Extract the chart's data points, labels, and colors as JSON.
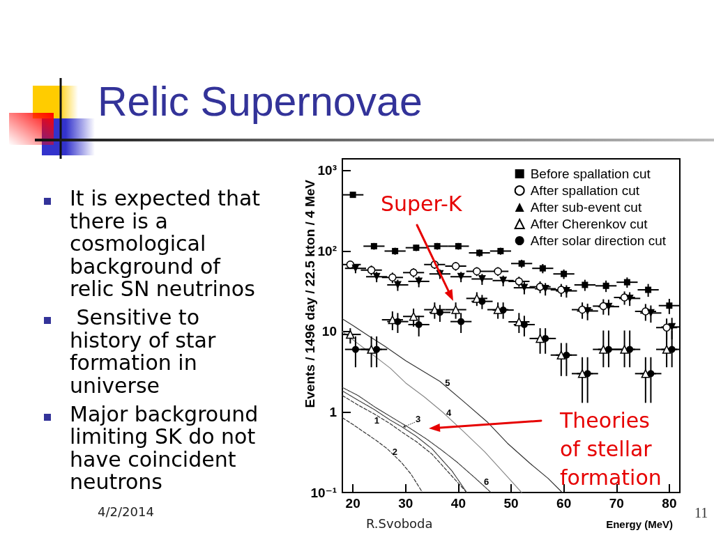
{
  "chart_data": {
    "type": "scatter",
    "title": "Relic Supernovae",
    "xlabel": "Energy (MeV)",
    "ylabel": "Events / 1496 day / 22.5 kton / 4 MeV",
    "xlim": [
      18,
      82
    ],
    "xticks": [
      20,
      30,
      40,
      50,
      60,
      70,
      80
    ],
    "ylim": [
      0.1,
      1400
    ],
    "yticks": [
      {
        "value": 0.1,
        "label": "10⁻¹"
      },
      1,
      10,
      {
        "value": 100,
        "label": "10²"
      },
      {
        "value": 1000,
        "label": "10³"
      }
    ],
    "log": "y",
    "legend": "top right",
    "series": [
      {
        "name": "Before spallation cut",
        "color": "#000000",
        "marker": "square",
        "x": [
          20,
          24,
          28,
          32,
          36,
          40,
          44,
          48,
          52,
          56,
          60,
          64,
          68,
          72,
          76,
          80
        ],
        "values": [
          500,
          115,
          100,
          110,
          115,
          115,
          95,
          100,
          70,
          61,
          52,
          38,
          37,
          41,
          33,
          21
        ],
        "errors": [
          22,
          11,
          10,
          10,
          11,
          11,
          10,
          10,
          8,
          8,
          7,
          6,
          6,
          6,
          6,
          4.5
        ],
        "xerrors": [
          2,
          2,
          2,
          2,
          2,
          2,
          2,
          2,
          2,
          2,
          2,
          2,
          2,
          2,
          2,
          2
        ]
      },
      {
        "name": "After spallation cut",
        "color": "#000000",
        "marker": "circle-open",
        "x": [
          19.5,
          23.5,
          27.5,
          31.5,
          35.5,
          39.5,
          43.5,
          47.5,
          51.5,
          55.5,
          59.5,
          63.5,
          67.5,
          71.5,
          75.5,
          79.5
        ],
        "values": [
          68,
          58,
          47,
          54,
          68,
          65,
          56,
          56,
          42,
          36,
          33,
          18.7,
          20.7,
          26.5,
          17.8,
          11.2
        ],
        "errors": [
          8,
          8,
          7,
          7,
          8,
          8,
          7,
          7,
          6,
          6,
          6,
          4.3,
          4.5,
          5,
          4.2,
          3.3
        ],
        "xerrors": [
          [
            18,
            21.5
          ],
          2,
          2,
          2,
          2,
          2,
          2,
          2,
          2,
          2,
          2,
          2,
          2,
          2,
          2,
          2
        ]
      },
      {
        "name": "After sub-event cut",
        "color": "#000000",
        "marker": "triangle-down",
        "x": [
          20.5,
          24.5,
          28.5,
          32.5,
          36.5,
          40.5,
          44.5,
          48.5,
          52.5,
          56.5,
          60.5,
          64.5,
          68.5,
          72.5,
          76.5,
          80.5
        ],
        "values": [
          61,
          48,
          38,
          42,
          52,
          48,
          45,
          43,
          35,
          34,
          32,
          18,
          20.4,
          25.8,
          17,
          11.4
        ],
        "errors": [
          8,
          7,
          6,
          6.5,
          7,
          7,
          7,
          6.5,
          6,
          6,
          5.6,
          4.2,
          4.5,
          5,
          4.1,
          3.4
        ],
        "xerrors": [
          2,
          2,
          2,
          2,
          2,
          2,
          2,
          2,
          2,
          2,
          2,
          2,
          2,
          2,
          2,
          [
            78.5,
            82
          ]
        ]
      },
      {
        "name": "After Cherenkov cut",
        "color": "#000000",
        "marker": "triangle-open",
        "x": [
          19.5,
          23.5,
          27.5,
          31.5,
          35.5,
          39.5,
          43.5,
          47.5,
          51.5,
          55.5,
          59.5,
          63.5,
          67.5,
          71.5,
          75.5,
          79.5
        ],
        "values": [
          9.2,
          6,
          14,
          15.4,
          18.7,
          18.7,
          25.8,
          18.7,
          13.2,
          8.2,
          5.1,
          3,
          6,
          6,
          3,
          6
        ],
        "errors": [
          [
            7.1,
            11
          ],
          [
            3.6,
            8.7
          ],
          [
            10.4,
            17.8
          ],
          [
            11.5,
            19.3
          ],
          [
            14.4,
            23
          ],
          [
            14.4,
            23
          ],
          [
            20.8,
            30.8
          ],
          [
            14.4,
            23
          ],
          [
            9.6,
            17
          ],
          [
            5.3,
            11
          ],
          [
            2.8,
            7.2
          ],
          [
            1.3,
            4.8
          ],
          [
            3.6,
            10.3
          ],
          [
            3.6,
            10.3
          ],
          [
            1.3,
            4.8
          ],
          [
            3.6,
            10.3
          ]
        ],
        "xerrors": [
          [
            18,
            21.5
          ],
          2,
          2,
          2,
          2,
          2,
          2,
          2,
          2,
          2,
          2,
          2,
          2,
          2,
          2,
          2
        ]
      },
      {
        "name": "After solar direction cut",
        "color": "#000000",
        "marker": "circle",
        "x": [
          20.5,
          24.5,
          28.5,
          32.5,
          36.5,
          40.5,
          44.5,
          48.5,
          52.5,
          56.5,
          60.5,
          64.5,
          68.5,
          72.5,
          76.5,
          80.5
        ],
        "values": [
          6,
          6,
          13.3,
          12.2,
          17.3,
          13.3,
          23.7,
          18.5,
          12.2,
          8.2,
          5.1,
          3,
          6,
          6,
          3,
          6
        ],
        "errors": [
          [
            3.6,
            8.7
          ],
          [
            3.6,
            8.7
          ],
          [
            9.6,
            17
          ],
          [
            8.7,
            15.7
          ],
          [
            13.2,
            21.4
          ],
          [
            9.6,
            17
          ],
          [
            19,
            28.5
          ],
          [
            14.4,
            23
          ],
          [
            8.7,
            15.7
          ],
          [
            5.3,
            11
          ],
          [
            2.8,
            7.2
          ],
          [
            1.3,
            4.8
          ],
          [
            3.6,
            10.3
          ],
          [
            3.6,
            10.3
          ],
          [
            1.3,
            4.8
          ],
          [
            3.6,
            10.3
          ]
        ],
        "xerrors": [
          2,
          2,
          2,
          2,
          2,
          2,
          2,
          2,
          2,
          2,
          2,
          2,
          2,
          2,
          2,
          [
            78.5,
            82
          ]
        ]
      },
      {
        "type": "line",
        "name": "1",
        "color": "#333333",
        "marker": "none",
        "line_style": "dashed",
        "x": [
          18,
          21,
          24,
          27,
          29.2,
          32,
          35,
          38.3,
          41.6
        ],
        "values": [
          1.6,
          1.22,
          0.95,
          0.72,
          0.57,
          0.43,
          0.3,
          0.173,
          0.1
        ]
      },
      {
        "type": "line",
        "name": "2",
        "color": "#333333",
        "marker": "none",
        "line_style": "dashed",
        "x": [
          18,
          20,
          22,
          24.5,
          26.5,
          29.1,
          31,
          33.2
        ],
        "values": [
          0.85,
          0.7,
          0.57,
          0.44,
          0.35,
          0.24,
          0.17,
          0.1
        ]
      },
      {
        "type": "line",
        "name": "3",
        "color": "#333333",
        "marker": "none",
        "line_style": "dotted",
        "x": [
          18,
          21,
          24,
          27,
          29.2,
          32,
          35,
          38.8,
          41.6
        ],
        "values": [
          1.83,
          1.4,
          1.08,
          0.8,
          0.66,
          0.5,
          0.35,
          0.185,
          0.1
        ]
      },
      {
        "type": "line",
        "name": "4",
        "color": "#888888",
        "marker": "none",
        "line_style": "solid",
        "x": [
          18,
          20,
          23.2,
          27.1,
          30,
          33.5,
          37,
          41,
          45,
          49.3,
          52
        ],
        "values": [
          10,
          7.9,
          5.5,
          3.5,
          2.3,
          1.55,
          1,
          0.57,
          0.32,
          0.157,
          0.1
        ]
      },
      {
        "type": "line",
        "name": "5",
        "color": "#333333",
        "marker": "none",
        "line_style": "solid",
        "x": [
          18,
          20,
          23,
          26,
          30,
          33,
          36.5,
          41,
          45.6,
          49.3,
          53.6,
          57,
          59.7
        ],
        "values": [
          14.4,
          11.9,
          8.8,
          6.6,
          4.35,
          3.3,
          2.4,
          1.35,
          0.74,
          0.41,
          0.23,
          0.15,
          0.1
        ]
      },
      {
        "type": "line",
        "name": "6",
        "color": "#333333",
        "marker": "none",
        "line_style": "dotted",
        "x": [
          18,
          21,
          24.2,
          27.5,
          30.8,
          34,
          37,
          39.7,
          43.2,
          46.2
        ],
        "values": [
          2.02,
          1.6,
          1.15,
          0.85,
          0.63,
          0.46,
          0.33,
          0.24,
          0.151,
          0.1
        ]
      }
    ],
    "annotations": [
      "It is expected that there is a cosmological background of relic SN neutrinos",
      " Sensitive to history of star formation in universe",
      "Major background limiting SK do not have coincident neutrons",
      "Super-K",
      "Theories of stellar formation",
      "4/2/2014",
      "R.Svoboda",
      "11"
    ]
  }
}
